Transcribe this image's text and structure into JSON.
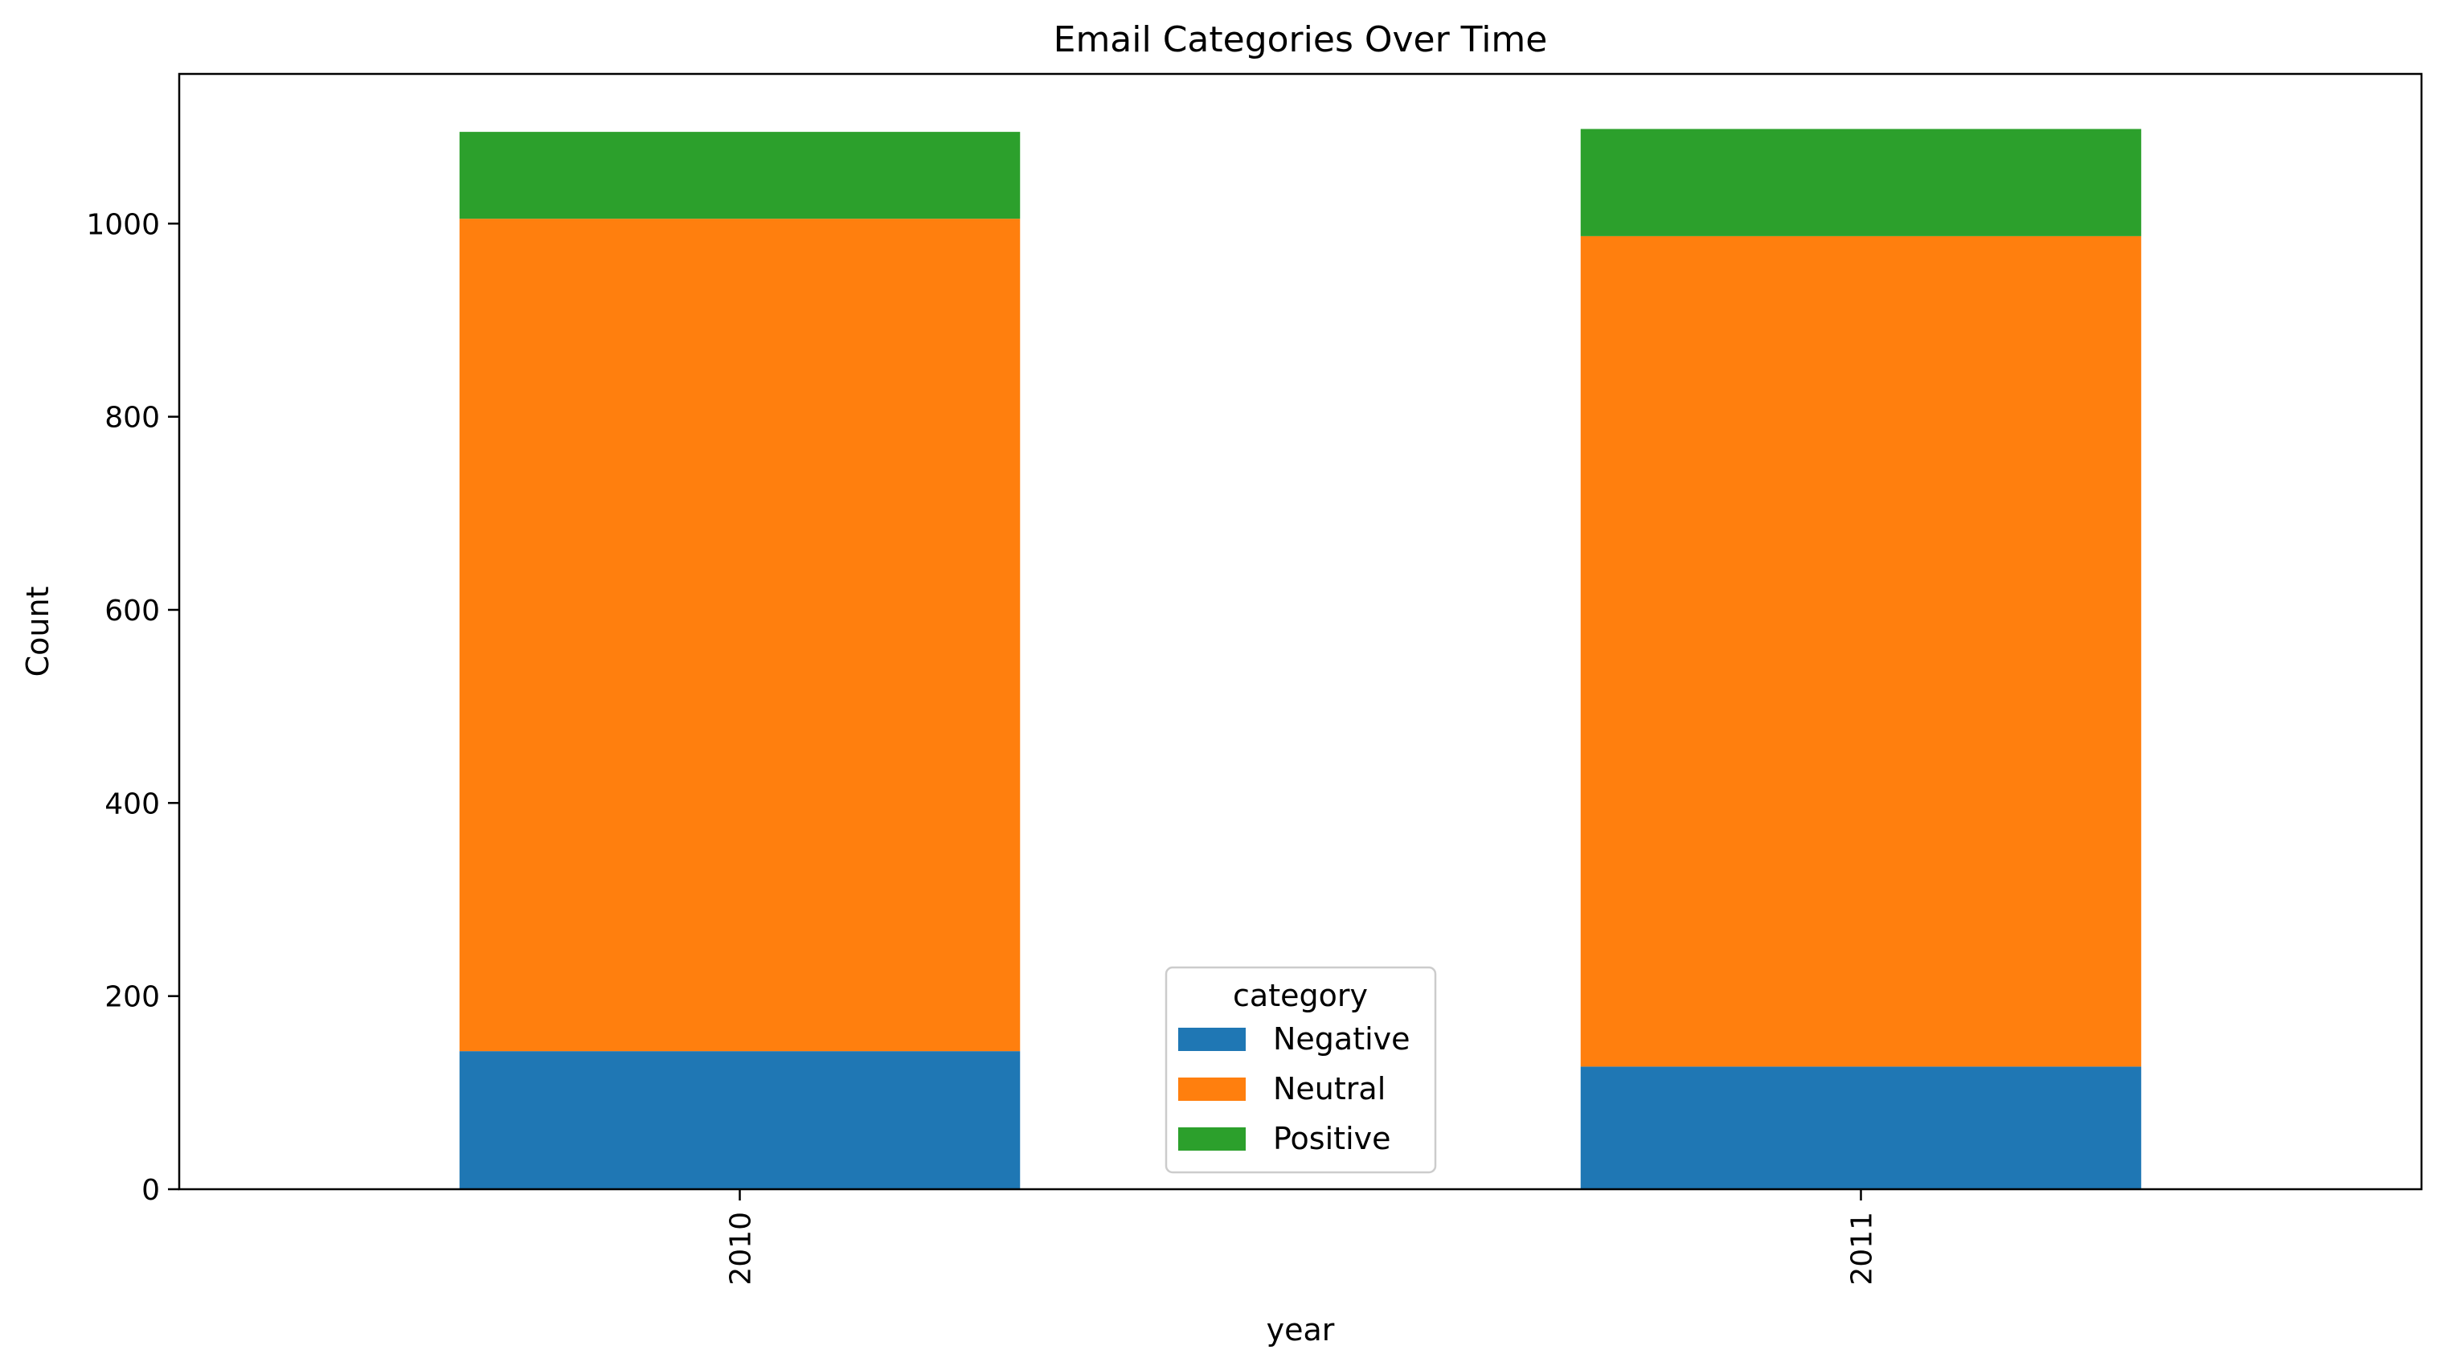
{
  "chart_data": {
    "type": "bar",
    "stacked": true,
    "title": "Email Categories Over Time",
    "xlabel": "year",
    "ylabel": "Count",
    "categories": [
      "2010",
      "2011"
    ],
    "ylim": [
      0,
      1155
    ],
    "yticks": [
      0,
      200,
      400,
      600,
      800,
      1000
    ],
    "series": [
      {
        "name": "Negative",
        "color": "#1f77b4",
        "values": [
          143,
          127
        ]
      },
      {
        "name": "Neutral",
        "color": "#ff7f0e",
        "values": [
          862,
          860
        ]
      },
      {
        "name": "Positive",
        "color": "#2ca02c",
        "values": [
          90,
          111
        ]
      }
    ],
    "legend": {
      "title": "category",
      "placement": "bottom-center"
    },
    "grid": false
  }
}
